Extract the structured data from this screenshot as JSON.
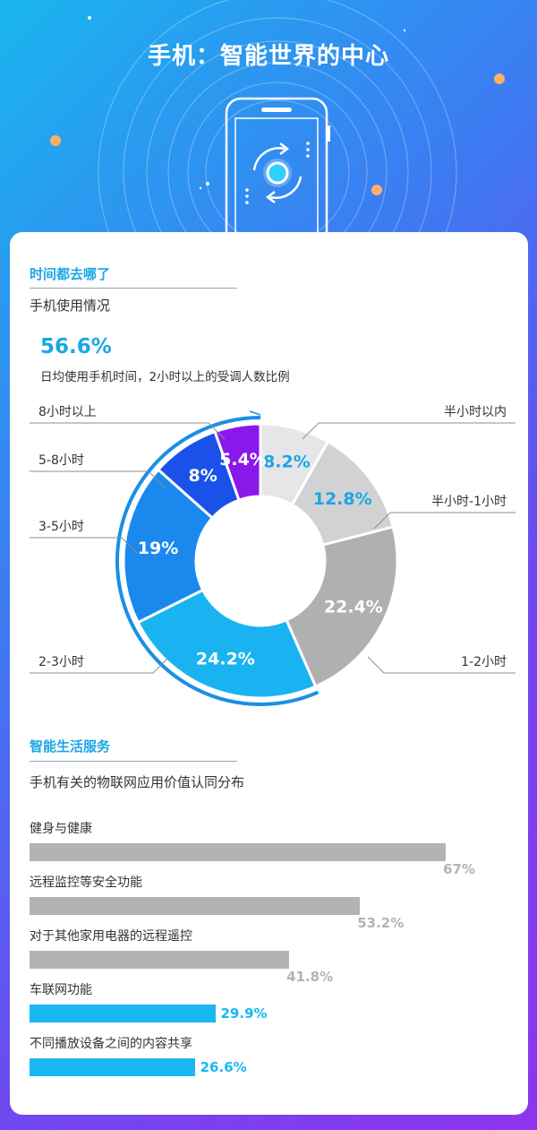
{
  "header": {
    "title": "手机：智能世界的中心"
  },
  "colors": {
    "accent": "#1aa6e6",
    "gray_bar": "#b3b3b5"
  },
  "section1": {
    "title": "时间都去哪了",
    "subtitle": "手机使用情况",
    "highlight_value": "56.6%",
    "highlight_desc": "日均使用手机时间，2小时以上的受调人数比例"
  },
  "section2": {
    "title": "智能生活服务",
    "subtitle": "手机有关的物联网应用价值认同分布"
  },
  "chart_data": [
    {
      "type": "pie",
      "style": "donut",
      "categories": [
        "半小时以内",
        "半小时-1小时",
        "1-2小时",
        "2-3小时",
        "3-5小时",
        "5-8小时",
        "8小时以上"
      ],
      "values": [
        8.2,
        12.8,
        22.4,
        24.2,
        19,
        8,
        5.4
      ],
      "value_labels": [
        "8.2%",
        "12.8%",
        "22.4%",
        "24.2%",
        "19%",
        "8%",
        "5.4%"
      ],
      "colors": [
        "#e6e6e8",
        "#d2d2d4",
        "#b0b0b3",
        "#19b3f2",
        "#1b88ee",
        "#1a52e9",
        "#8a18ea"
      ]
    },
    {
      "type": "bar",
      "orientation": "horizontal",
      "categories": [
        "健身与健康",
        "远程监控等安全功能",
        "对于其他家用电器的远程遥控",
        "车联网功能",
        "不同播放设备之间的内容共享"
      ],
      "values": [
        67,
        53.2,
        41.8,
        29.9,
        26.6
      ],
      "value_labels": [
        "67%",
        "53.2%",
        "41.8%",
        "29.9%",
        "26.6%"
      ],
      "colors": [
        "#b3b3b5",
        "#b3b3b5",
        "#b3b3b5",
        "#19b8f2",
        "#19b8f2"
      ],
      "label_colors": [
        "#b3b3b5",
        "#b3b3b5",
        "#b3b3b5",
        "#19b8f2",
        "#19b8f2"
      ]
    }
  ]
}
